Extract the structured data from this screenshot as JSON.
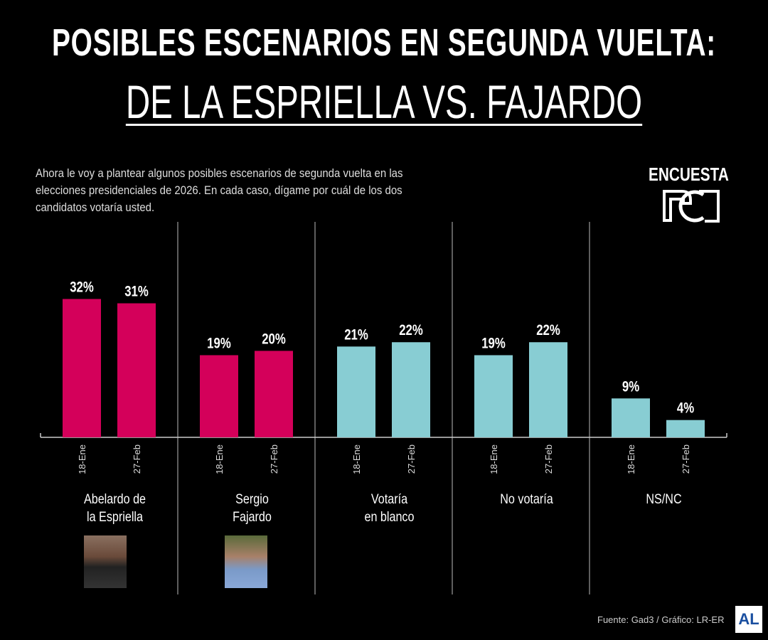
{
  "header": {
    "title_line1": "POSIBLES ESCENARIOS EN SEGUNDA VUELTA:",
    "title_line2": "DE LA ESPRIELLA VS. FAJARDO"
  },
  "question": "Ahora le voy a plantear algunos posibles escenarios de segunda vuelta en las elecciones presidenciales de 2026. En cada caso, dígame por cuál de los dos candidatos votaría usted.",
  "logo": {
    "label": "ENCUESTA",
    "brand": "RCN"
  },
  "footer": {
    "source": "Fuente: Gad3 / Gráfico: LR-ER",
    "badge": "AL"
  },
  "chart_data": {
    "type": "bar",
    "title": "",
    "groups": [
      "Abelardo de\nla Espriella",
      "Sergio\nFajardo",
      "Votaría\nen blanco",
      "No votaría",
      "NS/NC"
    ],
    "sub_categories": [
      "18-Ene",
      "27-Feb"
    ],
    "values": [
      [
        32,
        31
      ],
      [
        19,
        20
      ],
      [
        21,
        22
      ],
      [
        19,
        22
      ],
      [
        9,
        4
      ]
    ],
    "value_suffix": "%",
    "group_colors": [
      "#d4005a",
      "#d4005a",
      "#88cdd3",
      "#88cdd3",
      "#88cdd3"
    ],
    "ylim": [
      0,
      35
    ],
    "grid": false
  }
}
